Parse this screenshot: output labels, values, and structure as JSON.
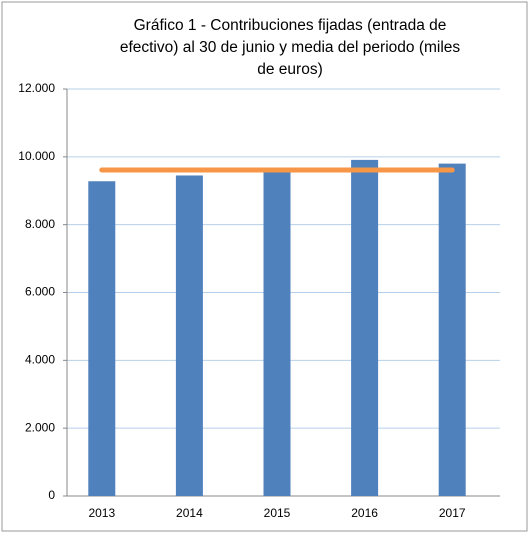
{
  "chart_data": {
    "type": "bar",
    "title": [
      "Gráfico 1 - Contribuciones fijadas (entrada de",
      "efectivo) al 30 de junio y media del periodo (miles",
      "de euros)"
    ],
    "categories": [
      "2013",
      "2014",
      "2015",
      "2016",
      "2017"
    ],
    "series": [
      {
        "type": "bar",
        "color": "#4f81bd",
        "values": [
          9280,
          9450,
          9620,
          9910,
          9800
        ]
      },
      {
        "type": "line",
        "color": "#f79646",
        "values": [
          9612,
          9612,
          9612,
          9612,
          9612
        ]
      }
    ],
    "ylim": [
      0,
      12000
    ],
    "yticks": [
      0,
      {
        "value": 2000,
        "label": "2.000"
      },
      {
        "value": 4000,
        "label": "4.000"
      },
      {
        "value": 6000,
        "label": "6.000"
      },
      {
        "value": 8000,
        "label": "8.000"
      },
      {
        "value": 10000,
        "label": "10.000"
      },
      {
        "value": 12000,
        "label": "12.000"
      }
    ],
    "grid": true
  }
}
